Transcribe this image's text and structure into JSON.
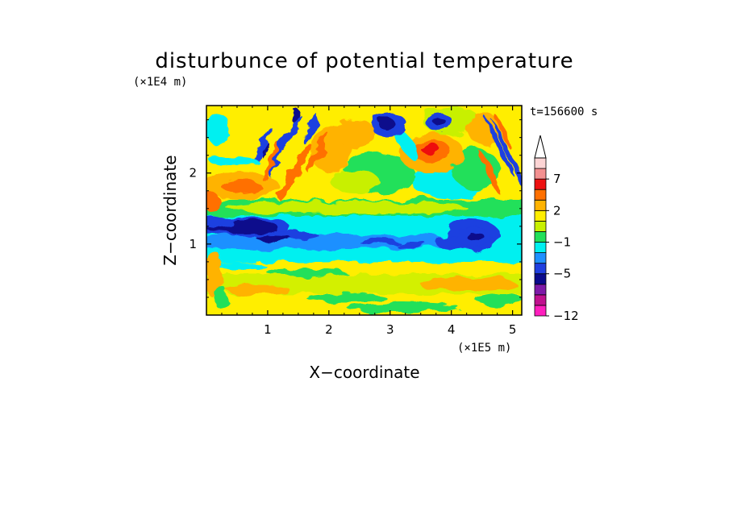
{
  "chart_data": {
    "type": "heatmap",
    "title": "disturbunce of potential temperature",
    "xlabel": "X−coordinate",
    "ylabel": "Z−coordinate",
    "x_unit": "(×1E5 m)",
    "y_unit": "(×1E4 m)",
    "time_label": "t=156600 s",
    "xlim": [
      0,
      5.15
    ],
    "ylim": [
      0,
      2.95
    ],
    "x_ticks": [
      1,
      2,
      3,
      4,
      5
    ],
    "y_ticks": [
      1,
      2
    ],
    "x_tick_labels": [
      "1",
      "2",
      "3",
      "4",
      "5"
    ],
    "y_tick_labels": [
      "1",
      "2"
    ],
    "colorbar": {
      "levels": [
        {
          "color": "#ff1fbe"
        },
        {
          "color": "#c0118f"
        },
        {
          "color": "#7e1aa8"
        },
        {
          "color": "#0a0a8c"
        },
        {
          "color": "#1f3fe0"
        },
        {
          "color": "#1e90ff"
        },
        {
          "color": "#00f0f0"
        },
        {
          "color": "#22e05a"
        },
        {
          "color": "#c8f000"
        },
        {
          "color": "#ffee00"
        },
        {
          "color": "#ffb300"
        },
        {
          "color": "#ff7000"
        },
        {
          "color": "#ee1111"
        },
        {
          "color": "#f39090"
        },
        {
          "color": "#fcd4d4"
        }
      ],
      "labels": [
        {
          "text": "−12",
          "at_level": 0
        },
        {
          "text": "−5",
          "at_level": 4
        },
        {
          "text": "−1",
          "at_level": 7
        },
        {
          "text": "2",
          "at_level": 10
        },
        {
          "text": "7",
          "at_level": 13
        }
      ],
      "extend": "max"
    },
    "features": [
      {
        "name": "strong negative band",
        "x_range": [
          0,
          5.15
        ],
        "z_center": 1.05,
        "value": "-5 to -1"
      },
      {
        "name": "positive maximum",
        "x": 3.62,
        "z": 2.35,
        "value": "about 7"
      },
      {
        "name": "negative patch",
        "x": 4.1,
        "z": 1.05,
        "value": "about -5"
      }
    ]
  }
}
